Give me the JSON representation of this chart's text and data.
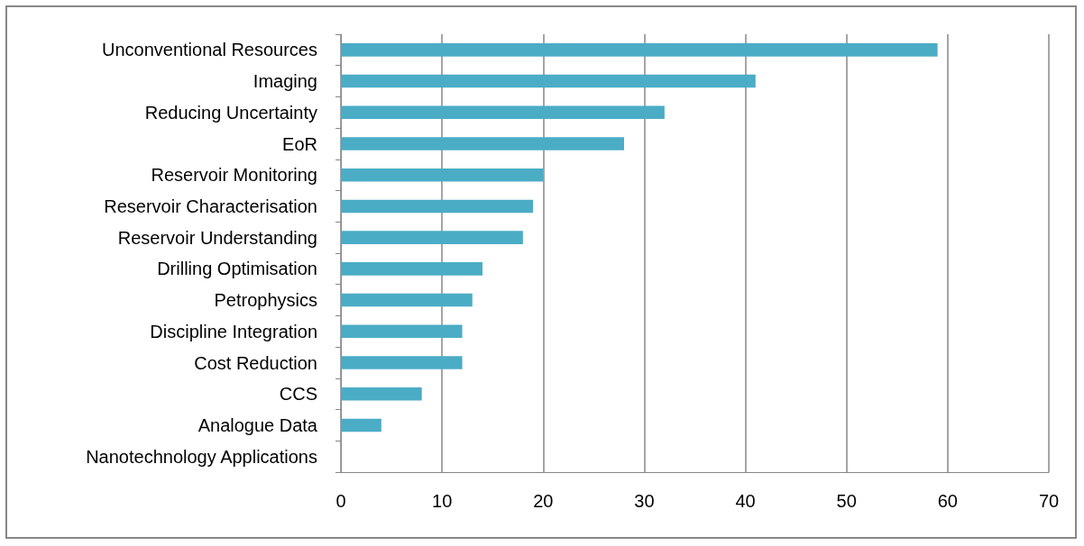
{
  "chart_data": {
    "type": "bar",
    "orientation": "horizontal",
    "categories": [
      "Unconventional Resources",
      "Imaging",
      "Reducing Uncertainty",
      "EoR",
      "Reservoir Monitoring",
      "Reservoir Characterisation",
      "Reservoir Understanding",
      "Drilling Optimisation",
      "Petrophysics",
      "Discipline Integration",
      "Cost Reduction",
      "CCS",
      "Analogue Data",
      "Nanotechnology Applications"
    ],
    "values": [
      59,
      41,
      32,
      28,
      20,
      19,
      18,
      14,
      13,
      12,
      12,
      8,
      4,
      0
    ],
    "color": "#4bacc6",
    "xlim": [
      0,
      70
    ],
    "xticks": [
      0,
      10,
      20,
      30,
      40,
      50,
      60,
      70
    ],
    "grid": "x"
  }
}
